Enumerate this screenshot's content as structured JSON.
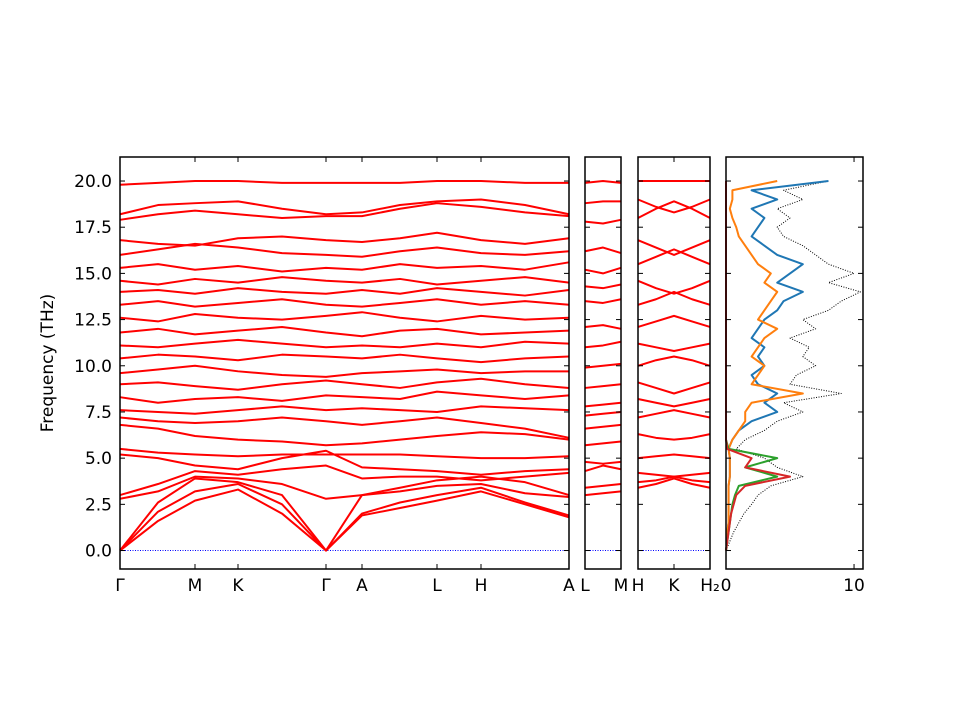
{
  "chart_data": [
    {
      "type": "line",
      "ylabel": "Frequency (THz)",
      "color": "#ff0000",
      "ytick_labels": true,
      "x": [
        0,
        0.38,
        0.75,
        1.18,
        1.62,
        2.06,
        2.42,
        2.8,
        3.17,
        3.61,
        4.05,
        4.49
      ],
      "xlim": [
        0,
        4.49
      ],
      "ylim": [
        -1.0,
        21.3
      ],
      "xticks": [
        {
          "value": 0,
          "label": "Γ"
        },
        {
          "value": 0.75,
          "label": "M"
        },
        {
          "value": 1.18,
          "label": "K"
        },
        {
          "value": 2.06,
          "label": "Γ"
        },
        {
          "value": 2.42,
          "label": "A"
        },
        {
          "value": 3.17,
          "label": "L"
        },
        {
          "value": 3.61,
          "label": "H"
        },
        {
          "value": 4.49,
          "label": "A"
        }
      ],
      "yticks": [
        {
          "value": 0,
          "label": "0.0"
        },
        {
          "value": 2.5,
          "label": "2.5"
        },
        {
          "value": 5,
          "label": "5.0"
        },
        {
          "value": 7.5,
          "label": "7.5"
        },
        {
          "value": 10,
          "label": "10.0"
        },
        {
          "value": 12.5,
          "label": "12.5"
        },
        {
          "value": 15,
          "label": "15.0"
        },
        {
          "value": 17.5,
          "label": "17.5"
        },
        {
          "value": 20,
          "label": "20.0"
        }
      ],
      "hline": 0,
      "hline_color": "#0000ff",
      "series": [
        {
          "values": [
            0,
            1.6,
            2.7,
            3.3,
            2.0,
            0,
            1.9,
            2.3,
            2.7,
            3.2,
            2.5,
            1.8
          ]
        },
        {
          "values": [
            0,
            2.1,
            3.2,
            3.6,
            2.5,
            0,
            2.0,
            2.6,
            3.0,
            3.4,
            2.6,
            1.9
          ]
        },
        {
          "values": [
            0,
            2.6,
            3.9,
            3.7,
            3.0,
            0,
            3.0,
            3.2,
            3.5,
            3.6,
            3.1,
            2.9
          ]
        },
        {
          "values": [
            2.8,
            3.2,
            4.0,
            3.9,
            3.6,
            2.8,
            3.0,
            3.4,
            3.8,
            4.0,
            3.7,
            3.0
          ]
        },
        {
          "values": [
            3.0,
            3.6,
            4.3,
            4.1,
            4.4,
            4.6,
            3.9,
            4.0,
            4.0,
            3.8,
            4.0,
            4.2
          ]
        },
        {
          "values": [
            5.2,
            5.0,
            4.6,
            4.4,
            5.0,
            5.4,
            4.5,
            4.4,
            4.3,
            4.1,
            4.3,
            4.4
          ]
        },
        {
          "values": [
            5.5,
            5.3,
            5.2,
            5.1,
            5.2,
            5.2,
            5.2,
            5.2,
            5.1,
            5.0,
            5.0,
            5.1
          ]
        },
        {
          "values": [
            6.8,
            6.6,
            6.2,
            6.0,
            5.9,
            5.7,
            5.8,
            6.0,
            6.2,
            6.4,
            6.3,
            6.0
          ]
        },
        {
          "values": [
            7.2,
            7.0,
            6.9,
            7.0,
            7.2,
            7.0,
            6.8,
            7.0,
            7.2,
            6.9,
            6.6,
            6.1
          ]
        },
        {
          "values": [
            7.6,
            7.5,
            7.4,
            7.6,
            7.8,
            7.6,
            7.7,
            7.6,
            7.5,
            7.8,
            7.7,
            7.6
          ]
        },
        {
          "values": [
            8.3,
            8.0,
            8.2,
            8.3,
            8.1,
            8.4,
            8.3,
            8.2,
            8.6,
            8.4,
            8.2,
            8.4
          ]
        },
        {
          "values": [
            9.0,
            9.1,
            8.9,
            8.7,
            9.0,
            9.2,
            9.0,
            8.8,
            9.1,
            9.3,
            9.0,
            8.8
          ]
        },
        {
          "values": [
            9.6,
            9.8,
            10.0,
            9.7,
            9.5,
            9.4,
            9.6,
            9.7,
            9.8,
            9.6,
            9.7,
            9.7
          ]
        },
        {
          "values": [
            10.4,
            10.6,
            10.5,
            10.3,
            10.6,
            10.5,
            10.4,
            10.6,
            10.4,
            10.2,
            10.4,
            10.5
          ]
        },
        {
          "values": [
            11.1,
            11.0,
            11.2,
            11.4,
            11.2,
            11.0,
            11.1,
            11.0,
            11.2,
            11.0,
            11.3,
            11.2
          ]
        },
        {
          "values": [
            11.8,
            12.0,
            11.7,
            11.9,
            12.1,
            11.8,
            11.6,
            11.9,
            12.0,
            11.7,
            11.8,
            11.9
          ]
        },
        {
          "values": [
            12.6,
            12.4,
            12.8,
            12.6,
            12.5,
            12.7,
            12.9,
            12.6,
            12.4,
            12.7,
            12.5,
            12.6
          ]
        },
        {
          "values": [
            13.3,
            13.5,
            13.2,
            13.4,
            13.6,
            13.3,
            13.2,
            13.4,
            13.6,
            13.3,
            13.5,
            13.3
          ]
        },
        {
          "values": [
            14.0,
            14.1,
            13.9,
            14.2,
            14.0,
            13.9,
            14.1,
            13.9,
            14.2,
            14.0,
            13.8,
            14.1
          ]
        },
        {
          "values": [
            14.6,
            14.4,
            14.7,
            14.5,
            14.8,
            14.6,
            14.5,
            14.7,
            14.4,
            14.6,
            14.8,
            14.5
          ]
        },
        {
          "values": [
            15.3,
            15.5,
            15.2,
            15.4,
            15.1,
            15.3,
            15.2,
            15.5,
            15.3,
            15.4,
            15.2,
            15.6
          ]
        },
        {
          "values": [
            16.0,
            16.3,
            16.6,
            16.4,
            16.1,
            16.0,
            15.9,
            16.2,
            16.4,
            16.1,
            16.0,
            16.2
          ]
        },
        {
          "values": [
            16.8,
            16.6,
            16.5,
            16.9,
            17.0,
            16.8,
            16.7,
            16.9,
            17.2,
            16.8,
            16.6,
            16.9
          ]
        },
        {
          "values": [
            17.9,
            18.2,
            18.4,
            18.2,
            18.0,
            18.1,
            18.1,
            18.5,
            18.8,
            18.6,
            18.3,
            18.1
          ]
        },
        {
          "values": [
            18.2,
            18.7,
            18.8,
            18.9,
            18.5,
            18.2,
            18.3,
            18.7,
            18.9,
            19.0,
            18.7,
            18.2
          ]
        },
        {
          "values": [
            19.8,
            19.9,
            20.0,
            20.0,
            19.9,
            19.9,
            19.9,
            19.9,
            20.0,
            20.0,
            19.9,
            19.9
          ]
        }
      ]
    },
    {
      "type": "line",
      "color": "#ff0000",
      "ytick_labels": false,
      "x": [
        0,
        0.18,
        0.36
      ],
      "xlim": [
        0,
        0.36
      ],
      "ylim": [
        -1.0,
        21.3
      ],
      "xticks": [
        {
          "value": 0,
          "label": "L"
        },
        {
          "value": 0.36,
          "label": "M"
        }
      ],
      "yticks": [
        0,
        2.5,
        5,
        7.5,
        10,
        12.5,
        15,
        17.5,
        20
      ],
      "hline": 0,
      "hline_color": "#0000ff",
      "series": [
        {
          "values": [
            3.0,
            3.1,
            3.2
          ]
        },
        {
          "values": [
            3.4,
            3.5,
            3.6
          ]
        },
        {
          "values": [
            4.3,
            4.6,
            4.4
          ]
        },
        {
          "values": [
            4.8,
            4.7,
            4.8
          ]
        },
        {
          "values": [
            5.7,
            5.8,
            5.9
          ]
        },
        {
          "values": [
            6.6,
            6.7,
            6.8
          ]
        },
        {
          "values": [
            7.3,
            7.4,
            7.5
          ]
        },
        {
          "values": [
            7.8,
            7.9,
            8.0
          ]
        },
        {
          "values": [
            8.8,
            8.9,
            9.0
          ]
        },
        {
          "values": [
            9.9,
            10.0,
            10.1
          ]
        },
        {
          "values": [
            11.0,
            11.1,
            11.3
          ]
        },
        {
          "values": [
            12.1,
            12.2,
            12.0
          ]
        },
        {
          "values": [
            13.5,
            13.4,
            13.6
          ]
        },
        {
          "values": [
            14.3,
            14.2,
            14.4
          ]
        },
        {
          "values": [
            15.2,
            15.0,
            15.3
          ]
        },
        {
          "values": [
            16.2,
            16.4,
            16.1
          ]
        },
        {
          "values": [
            17.8,
            17.7,
            17.9
          ]
        },
        {
          "values": [
            18.8,
            18.9,
            18.9
          ]
        },
        {
          "values": [
            19.9,
            20.0,
            19.9
          ]
        }
      ]
    },
    {
      "type": "line",
      "color": "#ff0000",
      "ytick_labels": false,
      "x": [
        0,
        0.18,
        0.36,
        0.54,
        0.72
      ],
      "xlim": [
        0,
        0.72
      ],
      "ylim": [
        -1.0,
        21.3
      ],
      "xticks": [
        {
          "value": 0,
          "label": "H"
        },
        {
          "value": 0.36,
          "label": "K"
        },
        {
          "value": 0.72,
          "label": "H₂"
        }
      ],
      "yticks": [
        0,
        2.5,
        5,
        7.5,
        10,
        12.5,
        15,
        17.5,
        20
      ],
      "hline": 0,
      "hline_color": "#0000ff",
      "series": [
        {
          "values": [
            3.4,
            3.6,
            3.9,
            3.6,
            3.4
          ]
        },
        {
          "values": [
            3.7,
            3.8,
            4.0,
            3.8,
            3.7
          ]
        },
        {
          "values": [
            4.2,
            4.1,
            4.0,
            4.1,
            4.2
          ]
        },
        {
          "values": [
            5.0,
            5.1,
            5.2,
            5.1,
            5.0
          ]
        },
        {
          "values": [
            6.3,
            6.1,
            6.0,
            6.1,
            6.3
          ]
        },
        {
          "values": [
            7.2,
            7.4,
            7.6,
            7.4,
            7.2
          ]
        },
        {
          "values": [
            8.2,
            8.0,
            7.8,
            8.0,
            8.2
          ]
        },
        {
          "values": [
            9.1,
            8.8,
            8.5,
            8.8,
            9.1
          ]
        },
        {
          "values": [
            10.0,
            10.3,
            10.5,
            10.3,
            10.0
          ]
        },
        {
          "values": [
            11.2,
            11.0,
            10.8,
            11.0,
            11.2
          ]
        },
        {
          "values": [
            12.1,
            12.4,
            12.7,
            12.4,
            12.1
          ]
        },
        {
          "values": [
            13.3,
            13.6,
            14.0,
            13.6,
            13.3
          ]
        },
        {
          "values": [
            14.6,
            14.2,
            13.9,
            14.2,
            14.6
          ]
        },
        {
          "values": [
            15.5,
            15.9,
            16.3,
            15.9,
            15.5
          ]
        },
        {
          "values": [
            16.8,
            16.4,
            16.0,
            16.4,
            16.8
          ]
        },
        {
          "values": [
            18.0,
            18.5,
            18.9,
            18.5,
            18.0
          ]
        },
        {
          "values": [
            19.0,
            18.6,
            18.3,
            18.6,
            19.0
          ]
        },
        {
          "values": [
            20.0,
            20.0,
            20.0,
            20.0,
            20.0
          ]
        }
      ]
    },
    {
      "type": "line",
      "ytick_labels": false,
      "y": [
        0,
        0.5,
        1,
        1.5,
        2,
        2.5,
        3,
        3.5,
        4,
        4.5,
        5,
        5.5,
        6,
        6.5,
        7,
        7.5,
        8,
        8.5,
        9,
        9.5,
        10,
        10.5,
        11,
        11.5,
        12,
        12.5,
        13,
        13.5,
        14,
        14.5,
        15,
        15.5,
        16,
        16.5,
        17,
        17.5,
        18,
        18.5,
        19,
        19.5,
        20
      ],
      "xlim": [
        0,
        10.7
      ],
      "ylim": [
        -1.0,
        21.3
      ],
      "xticks": [
        0,
        10
      ],
      "yticks": [
        0,
        2.5,
        5,
        7.5,
        10,
        12.5,
        15,
        17.5,
        20
      ],
      "series": [
        {
          "color": "#000000",
          "style": "dotted",
          "values": [
            0,
            0.3,
            0.6,
            1,
            1.4,
            2,
            2.5,
            3.5,
            6,
            4,
            3,
            0.8,
            1.5,
            3,
            4,
            6,
            4.5,
            9,
            5,
            5.5,
            7,
            6,
            6.5,
            5,
            7,
            6,
            8,
            9,
            10.5,
            8,
            10,
            8,
            7,
            6,
            4.5,
            4,
            5,
            4,
            6,
            4.5,
            8
          ]
        },
        {
          "color": "#1f77b4",
          "values": [
            0,
            0.1,
            0.1,
            0.2,
            0.2,
            0.2,
            0.2,
            0.2,
            0.3,
            0.3,
            0.3,
            0.2,
            0.5,
            1,
            2,
            4,
            3,
            4,
            2.5,
            2,
            3,
            2.5,
            3,
            2,
            2.5,
            3,
            4,
            4.5,
            6,
            4,
            5,
            6,
            4,
            3,
            2,
            2.5,
            3,
            2,
            4,
            2,
            8
          ]
        },
        {
          "color": "#ff7f0e",
          "values": [
            0,
            0.1,
            0.1,
            0.2,
            0.2,
            0.2,
            0.2,
            0.2,
            0.3,
            0.3,
            0.3,
            0.2,
            0.5,
            1,
            1.5,
            1.5,
            2,
            6,
            2,
            2.5,
            3,
            2,
            2.5,
            3,
            4,
            2.5,
            3,
            3.5,
            4,
            3,
            3.5,
            2.5,
            2,
            1.5,
            1,
            0.8,
            0.5,
            0.3,
            0.5,
            0.5,
            4
          ]
        },
        {
          "color": "#2ca02c",
          "values": [
            0,
            0.1,
            0.2,
            0.3,
            0.4,
            0.5,
            0.7,
            1,
            4,
            1.5,
            4,
            0.2,
            0,
            0,
            0,
            0,
            0,
            0,
            0,
            0,
            0,
            0,
            0,
            0,
            0,
            0,
            0,
            0,
            0,
            0,
            0,
            0,
            0,
            0,
            0,
            0,
            0,
            0,
            0,
            0,
            0
          ]
        },
        {
          "color": "#d62728",
          "values": [
            0,
            0.1,
            0.2,
            0.3,
            0.4,
            0.6,
            0.8,
            1.5,
            5,
            1.5,
            2,
            0.1,
            0,
            0,
            0,
            0,
            0,
            0,
            0,
            0,
            0,
            0,
            0,
            0,
            0,
            0,
            0,
            0,
            0,
            0,
            0,
            0,
            0,
            0,
            0,
            0,
            0,
            0,
            0,
            0,
            0
          ]
        }
      ]
    }
  ]
}
